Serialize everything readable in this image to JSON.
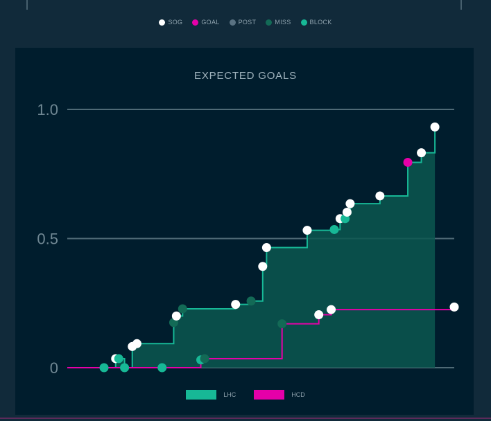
{
  "chart_data": {
    "type": "line",
    "title": "EXPECTED GOALS",
    "xlabel": "",
    "ylabel": "",
    "ylim": [
      0,
      1
    ],
    "y_ticks": [
      {
        "value": 0,
        "label": "0"
      },
      {
        "value": 0.5,
        "label": "0.5"
      },
      {
        "value": 1.0,
        "label": "1.0"
      }
    ],
    "grid": true,
    "x_domain": [
      0,
      100
    ],
    "step": true,
    "shot_types": [
      {
        "key": "sog",
        "label": "SOG",
        "color": "#ffffff"
      },
      {
        "key": "goal",
        "label": "GOAL",
        "color": "#e600a8"
      },
      {
        "key": "post",
        "label": "POST",
        "color": "#5a7282"
      },
      {
        "key": "miss",
        "label": "MISS",
        "color": "#136a56"
      },
      {
        "key": "block",
        "label": "BLOCK",
        "color": "#17b896"
      }
    ],
    "series": [
      {
        "name": "LHC",
        "color": "#17b896",
        "fill": "#0b5750",
        "end_x": 95,
        "points": [
          {
            "x": 0,
            "y": 0,
            "type": null
          },
          {
            "x": 9.5,
            "y": 0,
            "type": "block"
          },
          {
            "x": 14.8,
            "y": 0,
            "type": "block"
          },
          {
            "x": 12.5,
            "y": 0.035,
            "type": "sog"
          },
          {
            "x": 13.3,
            "y": 0.035,
            "type": "block"
          },
          {
            "x": 16.8,
            "y": 0.082,
            "type": "sog"
          },
          {
            "x": 18.0,
            "y": 0.093,
            "type": "sog"
          },
          {
            "x": 27.5,
            "y": 0.175,
            "type": "miss"
          },
          {
            "x": 28.2,
            "y": 0.2,
            "type": "sog"
          },
          {
            "x": 29.8,
            "y": 0.228,
            "type": "miss"
          },
          {
            "x": 43.5,
            "y": 0.245,
            "type": "sog"
          },
          {
            "x": 47.5,
            "y": 0.258,
            "type": "miss"
          },
          {
            "x": 50.5,
            "y": 0.392,
            "type": "sog"
          },
          {
            "x": 51.5,
            "y": 0.465,
            "type": "sog"
          },
          {
            "x": 62.0,
            "y": 0.532,
            "type": "sog"
          },
          {
            "x": 69.0,
            "y": 0.535,
            "type": "block"
          },
          {
            "x": 70.5,
            "y": 0.577,
            "type": "sog"
          },
          {
            "x": 71.8,
            "y": 0.577,
            "type": "block"
          },
          {
            "x": 72.3,
            "y": 0.602,
            "type": "sog"
          },
          {
            "x": 73.1,
            "y": 0.635,
            "type": "sog"
          },
          {
            "x": 80.8,
            "y": 0.665,
            "type": "sog"
          },
          {
            "x": 88.0,
            "y": 0.795,
            "type": "goal"
          },
          {
            "x": 91.5,
            "y": 0.832,
            "type": "sog"
          },
          {
            "x": 95.0,
            "y": 0.932,
            "type": "sog"
          }
        ]
      },
      {
        "name": "HCD",
        "color": "#e600a8",
        "end_x": 100,
        "points": [
          {
            "x": 0,
            "y": 0,
            "type": null
          },
          {
            "x": 24.5,
            "y": 0,
            "type": "block"
          },
          {
            "x": 34.5,
            "y": 0.03,
            "type": "block"
          },
          {
            "x": 35.5,
            "y": 0.035,
            "type": "miss"
          },
          {
            "x": 55.5,
            "y": 0.17,
            "type": "miss"
          },
          {
            "x": 65.0,
            "y": 0.205,
            "type": "sog"
          },
          {
            "x": 68.2,
            "y": 0.225,
            "type": "sog"
          },
          {
            "x": 100.0,
            "y": 0.235,
            "type": "sog"
          }
        ]
      }
    ]
  }
}
